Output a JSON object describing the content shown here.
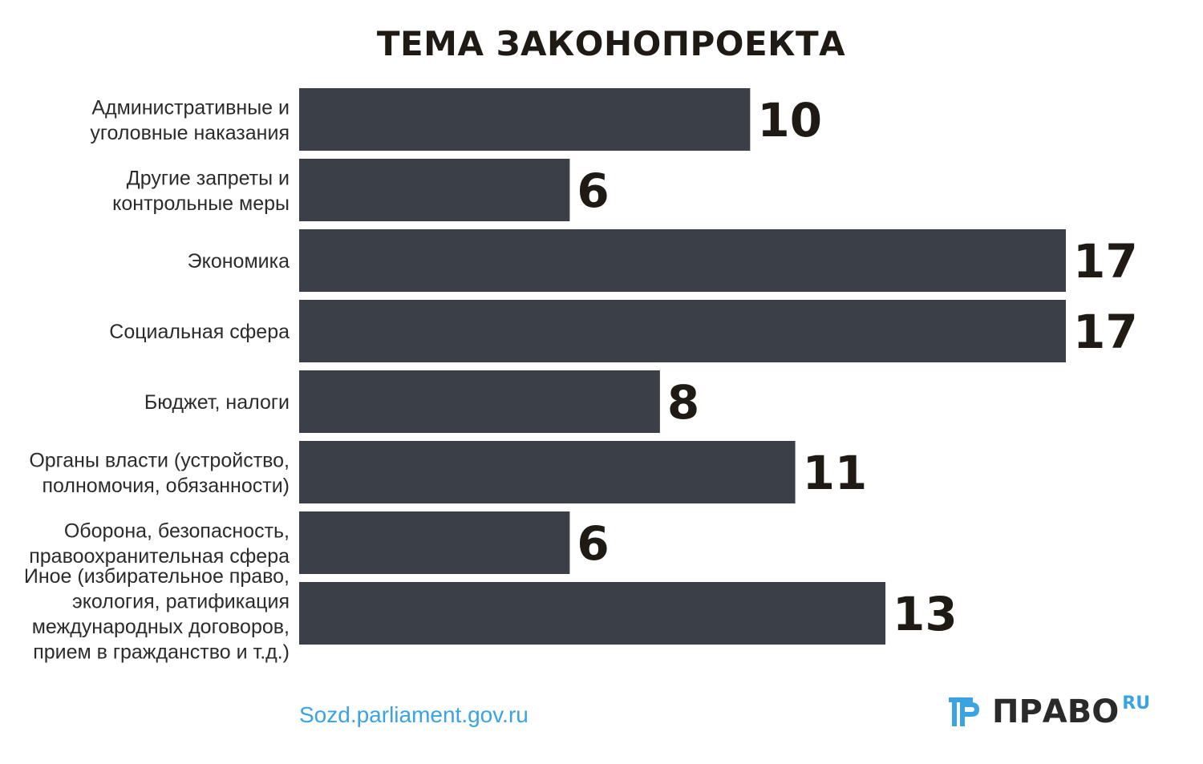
{
  "chart_data": {
    "type": "bar",
    "orientation": "horizontal",
    "title": "ТЕМА ЗАКОНОПРОЕКТА",
    "categories": [
      [
        "Административные и",
        "уголовные наказания"
      ],
      [
        "Другие запреты и",
        "контрольные меры"
      ],
      [
        "Экономика"
      ],
      [
        "Социальная сфера"
      ],
      [
        "Бюджет, налоги"
      ],
      [
        "Органы власти (устройство,",
        "полномочия, обязанности)"
      ],
      [
        "Оборона, безопасность,",
        "правоохранительная сфера"
      ],
      [
        "Иное (избирательное право,",
        "экология, ратификация",
        "международных договоров,",
        "прием в гражданство и т.д.)"
      ]
    ],
    "values": [
      10,
      6,
      17,
      17,
      8,
      11,
      6,
      13
    ],
    "xlim": [
      0,
      17
    ],
    "bar_color": "#3b3f48",
    "grid": false,
    "legend": "none"
  },
  "footer": {
    "source": "Sozd.parliament.gov.ru",
    "logo_word": "ПРАВО",
    "logo_suffix": "RU",
    "logo_color": "#3aa3e3"
  }
}
